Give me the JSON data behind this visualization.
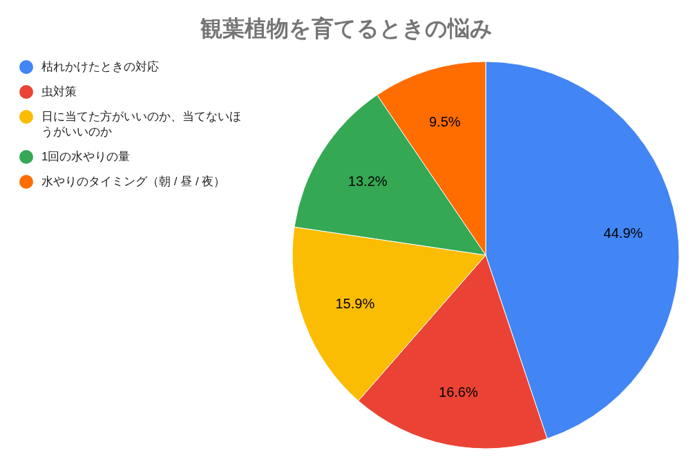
{
  "chart_data": {
    "type": "pie",
    "title": "観葉植物を育てるときの悩み",
    "categories": [
      "枯れかけたときの対応",
      "虫対策",
      "日に当てた方がいいのか、当てないほうがいいのか",
      "1回の水やりの量",
      "水やりのタイミング（朝 / 昼 / 夜）"
    ],
    "values": [
      44.9,
      16.6,
      15.9,
      13.2,
      9.5
    ],
    "colors": [
      "#4285f4",
      "#ea4335",
      "#fbbc04",
      "#34a853",
      "#ff6d01"
    ],
    "value_labels": [
      "44.9%",
      "16.6%",
      "15.9%",
      "13.2%",
      "9.5%"
    ],
    "legend": "top left"
  }
}
